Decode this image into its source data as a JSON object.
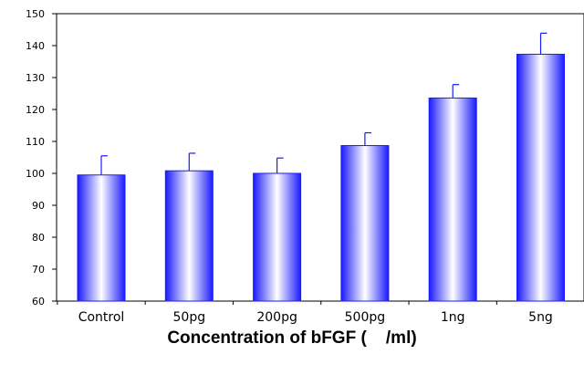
{
  "chart_data": {
    "type": "bar",
    "categories": [
      "Control",
      "50pg",
      "200pg",
      "500pg",
      "1ng",
      "5ng"
    ],
    "values": [
      99.5,
      100.8,
      100.0,
      108.7,
      123.6,
      137.3
    ],
    "error_upper": [
      6.0,
      5.5,
      4.8,
      4.0,
      4.2,
      6.6
    ],
    "title": "",
    "xlabel": "Concentration of bFGF (    /ml)",
    "ylabel": "",
    "ylim": [
      60,
      150
    ],
    "yticks": [
      60,
      70,
      80,
      90,
      100,
      110,
      120,
      130,
      140,
      150
    ],
    "grid": false,
    "bar_color_edge": "#1a1aff",
    "bar_color_center": "#ffffff",
    "error_bar_color": "#1a1aff"
  }
}
